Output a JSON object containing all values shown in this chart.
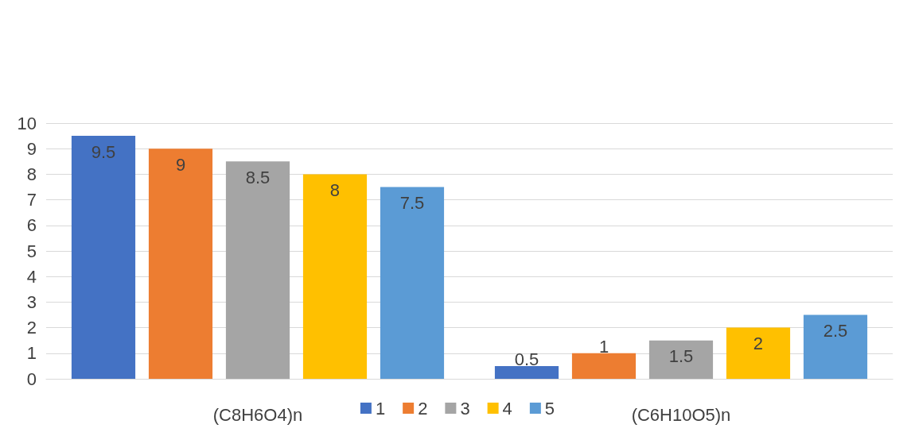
{
  "chart_data": {
    "type": "bar",
    "categories": [
      "(C8H6O4)n",
      "(C6H10O5)n"
    ],
    "series": [
      {
        "name": "1",
        "color": "#4472c4",
        "values": [
          9.5,
          0.5
        ]
      },
      {
        "name": "2",
        "color": "#ed7d31",
        "values": [
          9,
          1
        ]
      },
      {
        "name": "3",
        "color": "#a5a5a5",
        "values": [
          8.5,
          1.5
        ]
      },
      {
        "name": "4",
        "color": "#ffc000",
        "values": [
          8,
          2
        ]
      },
      {
        "name": "5",
        "color": "#5b9bd5",
        "values": [
          7.5,
          2.5
        ]
      }
    ],
    "ylim": [
      0,
      10
    ],
    "yticks": [
      0,
      1,
      2,
      3,
      4,
      5,
      6,
      7,
      8,
      9,
      10
    ],
    "grid": "y",
    "legend": "bottom",
    "data_labels": true
  }
}
